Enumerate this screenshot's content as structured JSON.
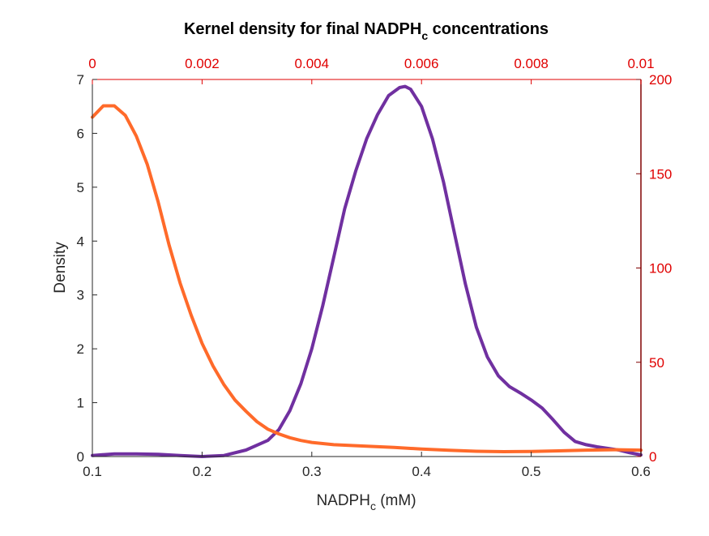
{
  "chart_data": {
    "type": "line",
    "title": "Kernel density for final NADPH",
    "title_subscript": "c",
    "title_suffix": " concentrations",
    "xlabel": "NADPH",
    "xlabel_subscript": "c",
    "xlabel_suffix": " (mM)",
    "ylabel": "Density",
    "grid": false,
    "x_bottom": {
      "range": [
        0.1,
        0.6
      ],
      "ticks": [
        0.1,
        0.2,
        0.3,
        0.4,
        0.5,
        0.6
      ],
      "tick_labels": [
        "0.1",
        "0.2",
        "0.3",
        "0.4",
        "0.5",
        "0.6"
      ],
      "color": "#262626"
    },
    "y_left": {
      "range": [
        0,
        7
      ],
      "ticks": [
        0,
        1,
        2,
        3,
        4,
        5,
        6,
        7
      ],
      "tick_labels": [
        "0",
        "1",
        "2",
        "3",
        "4",
        "5",
        "6",
        "7"
      ],
      "color": "#262626"
    },
    "x_top": {
      "range": [
        0,
        0.01
      ],
      "ticks": [
        0,
        0.002,
        0.004,
        0.006,
        0.008,
        0.01
      ],
      "tick_labels": [
        "0",
        "0.002",
        "0.004",
        "0.006",
        "0.008",
        "0.01"
      ],
      "color": "#e00000"
    },
    "y_right": {
      "range": [
        0,
        200
      ],
      "ticks": [
        0,
        50,
        100,
        150,
        200
      ],
      "tick_labels": [
        "0",
        "50",
        "100",
        "150",
        "200"
      ],
      "color": "#e00000",
      "spine_color": "#800000"
    },
    "series": [
      {
        "axes": "bottom-left",
        "color": "#7030a0",
        "x": [
          0.1,
          0.12,
          0.14,
          0.16,
          0.18,
          0.2,
          0.22,
          0.24,
          0.26,
          0.27,
          0.28,
          0.29,
          0.3,
          0.31,
          0.32,
          0.33,
          0.34,
          0.35,
          0.36,
          0.37,
          0.38,
          0.385,
          0.39,
          0.4,
          0.41,
          0.42,
          0.43,
          0.44,
          0.45,
          0.46,
          0.47,
          0.48,
          0.49,
          0.5,
          0.51,
          0.52,
          0.53,
          0.54,
          0.55,
          0.56,
          0.57,
          0.58,
          0.59,
          0.6
        ],
        "y": [
          0.02,
          0.05,
          0.05,
          0.04,
          0.02,
          0.0,
          0.02,
          0.12,
          0.3,
          0.5,
          0.85,
          1.35,
          2.0,
          2.8,
          3.7,
          4.6,
          5.3,
          5.9,
          6.35,
          6.7,
          6.85,
          6.87,
          6.82,
          6.5,
          5.9,
          5.1,
          4.15,
          3.2,
          2.4,
          1.85,
          1.5,
          1.3,
          1.18,
          1.05,
          0.9,
          0.68,
          0.45,
          0.28,
          0.22,
          0.18,
          0.15,
          0.12,
          0.07,
          0.03
        ]
      },
      {
        "axes": "top-right",
        "color": "#ff6a2a",
        "x": [
          0.0,
          0.0002,
          0.0004,
          0.0006,
          0.0008,
          0.001,
          0.0012,
          0.0014,
          0.0016,
          0.0018,
          0.002,
          0.0022,
          0.0024,
          0.0026,
          0.0028,
          0.003,
          0.0032,
          0.0034,
          0.0036,
          0.0038,
          0.004,
          0.0044,
          0.005,
          0.0055,
          0.006,
          0.0065,
          0.007,
          0.0075,
          0.008,
          0.0085,
          0.009,
          0.0095,
          0.01
        ],
        "y": [
          180,
          186,
          186,
          181,
          170,
          155,
          135,
          112,
          92,
          75,
          60,
          48,
          38,
          30,
          24,
          18.5,
          14.5,
          12,
          10,
          8.5,
          7.5,
          6.3,
          5.5,
          4.8,
          4.0,
          3.3,
          2.8,
          2.6,
          2.7,
          3.0,
          3.4,
          3.6,
          3.4
        ]
      }
    ]
  }
}
